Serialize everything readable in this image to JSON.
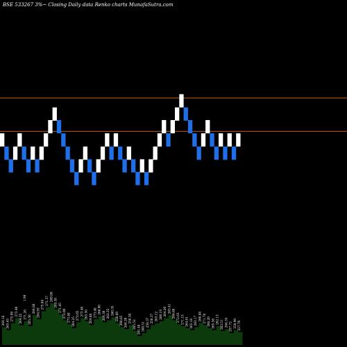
{
  "chart_data": {
    "type": "renko",
    "title": "BSE 533267 3%~   Closing Daily data  Renko  charts MunafaSutra.com",
    "colors": {
      "background": "#000000",
      "up_brick": "#ffffff",
      "down_brick": "#1e6fe8",
      "reference_line": "#c8641e",
      "volume_fill": "#0c3a0c"
    },
    "price_axis": {
      "min": 244,
      "max": 288
    },
    "reference_lines": [
      272.8,
      267.0
    ],
    "bricks": [
      {
        "dir": "up",
        "price": 265.5
      },
      {
        "dir": "down",
        "price": 263.2
      },
      {
        "dir": "down",
        "price": 261.0
      },
      {
        "dir": "up",
        "price": 263.2
      },
      {
        "dir": "up",
        "price": 265.5
      },
      {
        "dir": "down",
        "price": 263.2
      },
      {
        "dir": "down",
        "price": 261.0
      },
      {
        "dir": "up",
        "price": 263.2
      },
      {
        "dir": "down",
        "price": 261.0
      },
      {
        "dir": "up",
        "price": 263.2
      },
      {
        "dir": "up",
        "price": 265.5
      },
      {
        "dir": "up",
        "price": 267.8
      },
      {
        "dir": "up",
        "price": 270.0
      },
      {
        "dir": "down",
        "price": 267.8
      },
      {
        "dir": "down",
        "price": 265.5
      },
      {
        "dir": "down",
        "price": 263.2
      },
      {
        "dir": "down",
        "price": 261.0
      },
      {
        "dir": "down",
        "price": 258.8
      },
      {
        "dir": "up",
        "price": 261.0
      },
      {
        "dir": "up",
        "price": 263.2
      },
      {
        "dir": "down",
        "price": 261.0
      },
      {
        "dir": "down",
        "price": 258.8
      },
      {
        "dir": "up",
        "price": 261.0
      },
      {
        "dir": "up",
        "price": 263.2
      },
      {
        "dir": "up",
        "price": 265.5
      },
      {
        "dir": "down",
        "price": 263.2
      },
      {
        "dir": "up",
        "price": 265.5
      },
      {
        "dir": "down",
        "price": 263.2
      },
      {
        "dir": "down",
        "price": 261.0
      },
      {
        "dir": "up",
        "price": 263.2
      },
      {
        "dir": "down",
        "price": 261.0
      },
      {
        "dir": "down",
        "price": 258.8
      },
      {
        "dir": "up",
        "price": 261.0
      },
      {
        "dir": "down",
        "price": 258.8
      },
      {
        "dir": "up",
        "price": 261.0
      },
      {
        "dir": "up",
        "price": 263.2
      },
      {
        "dir": "up",
        "price": 265.5
      },
      {
        "dir": "up",
        "price": 267.8
      },
      {
        "dir": "down",
        "price": 265.5
      },
      {
        "dir": "up",
        "price": 267.8
      },
      {
        "dir": "up",
        "price": 270.0
      },
      {
        "dir": "up",
        "price": 272.3
      },
      {
        "dir": "down",
        "price": 270.0
      },
      {
        "dir": "down",
        "price": 267.8
      },
      {
        "dir": "down",
        "price": 265.5
      },
      {
        "dir": "down",
        "price": 263.2
      },
      {
        "dir": "up",
        "price": 265.5
      },
      {
        "dir": "up",
        "price": 267.8
      },
      {
        "dir": "down",
        "price": 265.5
      },
      {
        "dir": "down",
        "price": 263.2
      },
      {
        "dir": "up",
        "price": 265.5
      },
      {
        "dir": "down",
        "price": 263.2
      },
      {
        "dir": "up",
        "price": 265.5
      },
      {
        "dir": "down",
        "price": 263.2
      },
      {
        "dir": "up",
        "price": 265.5
      }
    ],
    "volume": {
      "values": [
        18,
        15,
        22,
        27,
        20,
        24,
        19,
        30,
        26,
        34,
        38,
        42,
        36,
        31,
        25,
        21,
        17,
        23,
        27,
        24,
        20,
        26,
        29,
        23,
        25,
        28,
        22,
        18,
        16,
        20,
        14,
        9,
        12,
        16,
        20,
        22,
        24,
        27,
        30,
        25,
        21,
        19,
        17,
        15,
        18,
        22,
        20,
        17,
        15,
        19,
        14,
        16,
        12,
        15,
        13
      ],
      "max": 50,
      "labels": [
        "264.18",
        "265.65",
        "275.98",
        "273.40",
        "264.25",
        "271.20",
        "265.50",
        "264.88",
        "264.93",
        "275.88",
        "271.57",
        "269.80",
        "264.38",
        "271.85",
        "272.00",
        "273.40",
        "264.25",
        "272.05",
        "273.40",
        "265.50",
        "264.88",
        "273.48",
        "266.90",
        "264.30",
        "262.35",
        "260.35",
        "256.60",
        "260.65",
        "264.20",
        "258.38",
        "265.52",
        "261.48",
        "260.51",
        "258.37",
        "258.37",
        "263.12",
        "266.19",
        "264.20",
        "265.41",
        "266.68",
        "272.63",
        "271.15",
        "264.61",
        "265.18",
        "263.17",
        "260.88",
        "271.78",
        "266.20",
        "265.56",
        "262.13",
        "263.51",
        "264.55",
        "257.72",
        "258.90",
        "257.70"
      ],
      "extra_label": "1.98"
    }
  }
}
